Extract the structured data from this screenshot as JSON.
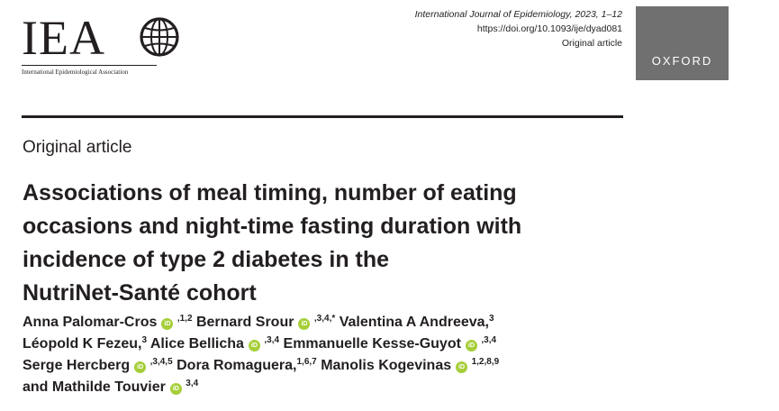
{
  "logo": {
    "letters": "IEA",
    "subtitle": "International Epidemiological Association"
  },
  "journal": {
    "citation": "International Journal of Epidemiology, 2023, 1–12",
    "doi": "https://doi.org/10.1093/ije/dyad081",
    "type": "Original article"
  },
  "publisher": {
    "name": "OXFORD"
  },
  "article": {
    "type": "Original article",
    "title": [
      "Associations of meal timing, number of eating",
      "occasions and night-time fasting duration with",
      "incidence of type 2 diabetes in the",
      "NutriNet-Santé cohort"
    ]
  },
  "authors": [
    {
      "name": "Anna Palomar-Cros",
      "orcid": true,
      "aff": ",1,2"
    },
    {
      "name": "Bernard Srour",
      "orcid": true,
      "aff": ",3,4,*"
    },
    {
      "name": "Valentina A Andreeva,",
      "orcid": false,
      "aff": "3"
    },
    {
      "name": "Léopold K Fezeu,",
      "orcid": false,
      "aff": "3"
    },
    {
      "name": "Alice Bellicha",
      "orcid": true,
      "aff": ",3,4"
    },
    {
      "name": "Emmanuelle Kesse-Guyot",
      "orcid": true,
      "aff": ",3,4"
    },
    {
      "name": "Serge Hercberg",
      "orcid": true,
      "aff": ",3,4,5"
    },
    {
      "name": "Dora Romaguera,",
      "orcid": false,
      "aff": "1,6,7"
    },
    {
      "name": "Manolis Kogevinas",
      "orcid": true,
      "aff": "1,2,8,9"
    },
    {
      "name": "and Mathilde Touvier",
      "orcid": true,
      "aff": "3,4"
    }
  ],
  "orcid_icon": {
    "name": "orcid-icon",
    "glyph": "iD",
    "color": "#a6ce39"
  }
}
